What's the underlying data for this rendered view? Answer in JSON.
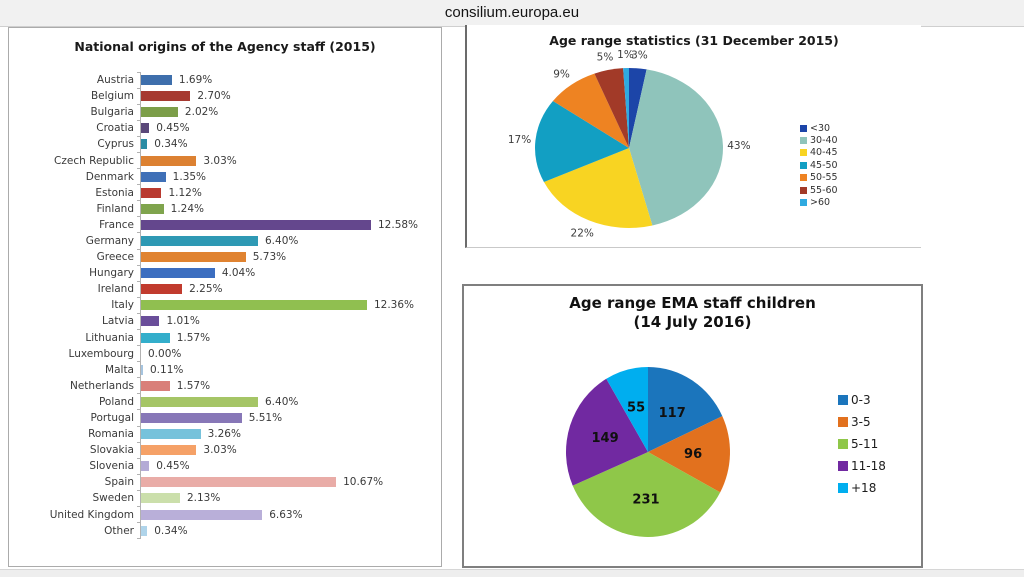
{
  "header": {
    "site_label": "consilium.europa.eu"
  },
  "chart_data": [
    {
      "id": "national-origins-bar",
      "type": "bar",
      "orientation": "horizontal",
      "title": "National origins of the Agency staff (2015)",
      "unit": "%",
      "xlim": [
        0,
        14
      ],
      "grid": false,
      "categories": [
        "Austria",
        "Belgium",
        "Bulgaria",
        "Croatia",
        "Cyprus",
        "Czech Republic",
        "Denmark",
        "Estonia",
        "Finland",
        "France",
        "Germany",
        "Greece",
        "Hungary",
        "Ireland",
        "Italy",
        "Latvia",
        "Lithuania",
        "Luxembourg",
        "Malta",
        "Netherlands",
        "Poland",
        "Portugal",
        "Romania",
        "Slovakia",
        "Slovenia",
        "Spain",
        "Sweden",
        "United Kingdom",
        "Other"
      ],
      "values": [
        1.69,
        2.7,
        2.02,
        0.45,
        0.34,
        3.03,
        1.35,
        1.12,
        1.24,
        12.58,
        6.4,
        5.73,
        4.04,
        2.25,
        12.36,
        1.01,
        1.57,
        0.0,
        0.11,
        1.57,
        6.4,
        5.51,
        3.26,
        3.03,
        0.45,
        10.67,
        2.13,
        6.63,
        0.34
      ],
      "value_labels": [
        "1.69%",
        "2.70%",
        "2.02%",
        "0.45%",
        "0.34%",
        "3.03%",
        "1.35%",
        "1.12%",
        "1.24%",
        "12.58%",
        "6.40%",
        "5.73%",
        "4.04%",
        "2.25%",
        "12.36%",
        "1.01%",
        "1.57%",
        "0.00%",
        "0.11%",
        "1.57%",
        "6.40%",
        "5.51%",
        "3.26%",
        "3.03%",
        "0.45%",
        "10.67%",
        "2.13%",
        "6.63%",
        "0.34%"
      ],
      "colors": [
        "#3E6FAC",
        "#A63A31",
        "#7C9E49",
        "#5A4879",
        "#2C8CA4",
        "#DC8132",
        "#3F70B7",
        "#B93A30",
        "#7FA44D",
        "#64478D",
        "#2E99B4",
        "#E08331",
        "#3C6EC0",
        "#C13B2E",
        "#90BF50",
        "#6A4E9A",
        "#33AECB",
        "#999999",
        "#A5C4DF",
        "#D97F79",
        "#A5C566",
        "#8777B7",
        "#76C2DB",
        "#F5A167",
        "#B4ABD6",
        "#E9ACA7",
        "#CBDFAB",
        "#B9AFD9",
        "#AFD4EA"
      ]
    },
    {
      "id": "age-range-staff-pie",
      "type": "pie",
      "title": "Age range statistics (31 December 2015)",
      "legend_position": "right",
      "labels": [
        "<30",
        "30-40",
        "40-45",
        "45-50",
        "50-55",
        "55-60",
        ">60"
      ],
      "values": [
        3,
        43,
        22,
        17,
        9,
        5,
        1
      ],
      "value_labels": [
        "3%",
        "43%",
        "22%",
        "17%",
        "9%",
        "5%",
        "1%"
      ],
      "colors": [
        "#1C45A8",
        "#8FC4BB",
        "#F8D422",
        "#129FC3",
        "#EE8322",
        "#A23A28",
        "#2FAAE0"
      ]
    },
    {
      "id": "age-range-children-pie",
      "type": "pie",
      "title": "Age range EMA staff children",
      "subtitle": "(14 July 2016)",
      "legend_position": "right",
      "labels": [
        "0-3",
        "3-5",
        "5-11",
        "11-18",
        "+18"
      ],
      "values": [
        117,
        96,
        231,
        149,
        55
      ],
      "value_labels": [
        "117",
        "96",
        "231",
        "149",
        "55"
      ],
      "colors": [
        "#1B75BC",
        "#E2711E",
        "#8FC749",
        "#7129A1",
        "#00AEEF"
      ]
    }
  ]
}
